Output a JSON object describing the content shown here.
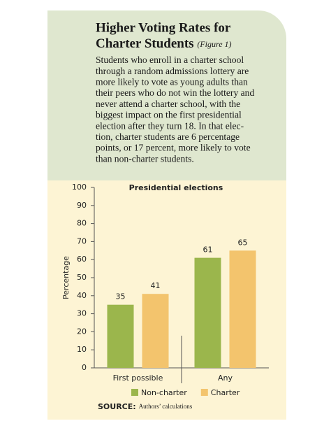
{
  "header": {
    "title_lines": [
      "Higher Voting Rates for",
      "Charter Students"
    ],
    "figure_label": "(Figure 1)",
    "body_lines": [
      "Students who enroll in a charter school",
      "through a random admissions lottery are",
      "more likely to vote as young adults than",
      "their peers who do not win the lottery and",
      "never attend a charter school, with the",
      "biggest impact on the first presidential",
      "election after they turn 18. In that elec-",
      "tion, charter students are 6 percentage",
      "points, or 17 percent, more likely to vote",
      "than non-charter students."
    ]
  },
  "chart_data": {
    "type": "bar",
    "title": "Presidential elections",
    "y_label": "Percentage",
    "categories": [
      "First possible",
      "Any"
    ],
    "series": [
      {
        "name": "Non-charter",
        "color": "#9bb64c",
        "values": [
          35,
          61
        ]
      },
      {
        "name": "Charter",
        "color": "#f3c46d",
        "values": [
          41,
          65
        ]
      }
    ],
    "ylim": [
      0,
      100
    ],
    "yticks": [
      0,
      10,
      20,
      30,
      40,
      50,
      60,
      70,
      80,
      90,
      100
    ],
    "grid": false,
    "legend": "bottom"
  },
  "source": {
    "label": "SOURCE:",
    "text": "Authors’ calculations"
  }
}
